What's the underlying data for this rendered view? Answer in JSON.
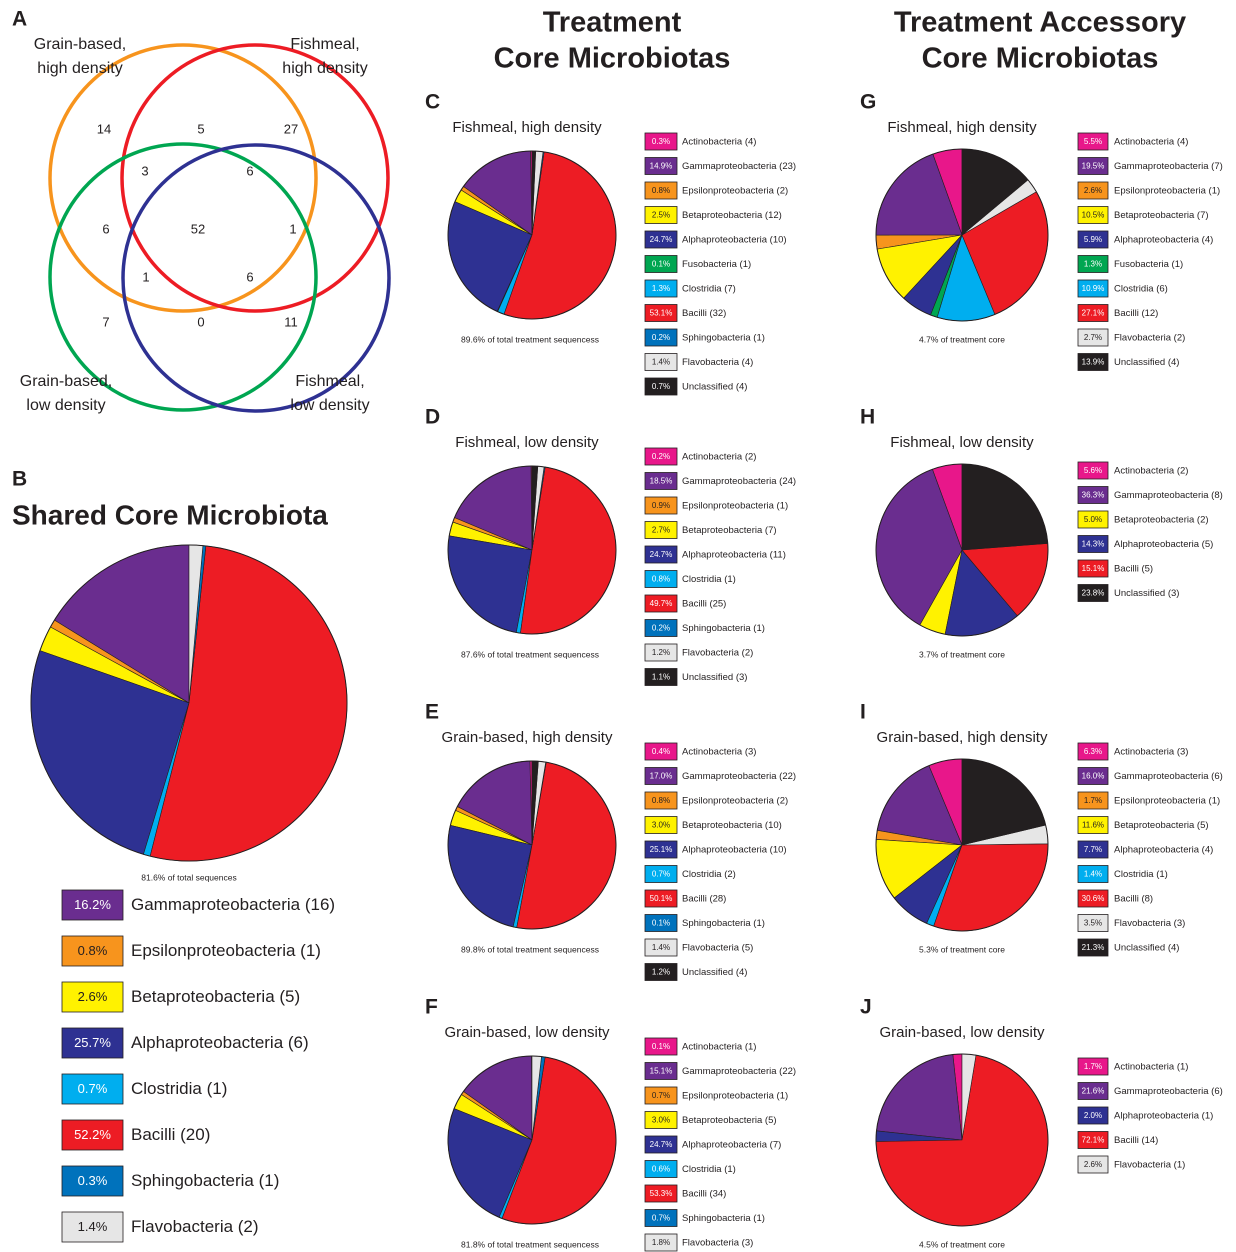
{
  "columns": [
    {
      "title_lines": [
        "Treatment",
        "Core Microbiotas"
      ]
    },
    {
      "title_lines": [
        "Treatment Accessory",
        "Core Microbiotas"
      ]
    }
  ],
  "venn": {
    "panel": "A",
    "sets": [
      {
        "label_lines": [
          "Grain-based,",
          "high density"
        ],
        "color": "#f7941d"
      },
      {
        "label_lines": [
          "Fishmeal,",
          "high density"
        ],
        "color": "#ed1c24"
      },
      {
        "label_lines": [
          "Grain-based,",
          "low density"
        ],
        "color": "#00a651"
      },
      {
        "label_lines": [
          "Fishmeal,",
          "low density"
        ],
        "color": "#2e3192"
      }
    ],
    "regions": [
      14,
      5,
      27,
      3,
      6,
      6,
      52,
      1,
      1,
      6,
      7,
      0,
      11
    ]
  },
  "chart_data": [
    {
      "type": "pie",
      "panel": "B",
      "title": "Shared Core Microbiota",
      "note": "81.6% of total sequences",
      "categories": [
        "Gammaproteobacteria (16)",
        "Epsilonproteobacteria (1)",
        "Betaproteobacteria (5)",
        "Alphaproteobacteria (6)",
        "Clostridia (1)",
        "Bacilli (20)",
        "Sphingobacteria (1)",
        "Flavobacteria (2)"
      ],
      "values": [
        16.2,
        0.8,
        2.6,
        25.7,
        0.7,
        52.2,
        0.3,
        1.4
      ],
      "value_labels": [
        "16.2%",
        "0.8%",
        "2.6%",
        "25.7%",
        "0.7%",
        "52.2%",
        "0.3%",
        "1.4%"
      ],
      "colors": [
        "#6a2d8f",
        "#f7941d",
        "#fff200",
        "#2e3192",
        "#00aeef",
        "#ed1c24",
        "#0072bc",
        "#e6e6e6"
      ]
    },
    {
      "type": "pie",
      "panel": "C",
      "title": "Fishmeal, high density",
      "note": "89.6% of total treatment sequencess",
      "categories": [
        "Actinobacteria (4)",
        "Gammaproteobacteria (23)",
        "Epsilonproteobacteria (2)",
        "Betaproteobacteria (12)",
        "Alphaproteobacteria (10)",
        "Fusobacteria (1)",
        "Clostridia (7)",
        "Bacilli (32)",
        "Sphingobacteria (1)",
        "Flavobacteria (4)",
        "Unclassified (4)"
      ],
      "values": [
        0.3,
        14.9,
        0.8,
        2.5,
        24.7,
        0.1,
        1.3,
        53.1,
        0.2,
        1.4,
        0.7
      ],
      "value_labels": [
        "0.3%",
        "14.9%",
        "0.8%",
        "2.5%",
        "24.7%",
        "0.1%",
        "1.3%",
        "53.1%",
        "0.2%",
        "1.4%",
        "0.7%"
      ],
      "colors": [
        "#e8178a",
        "#6a2d8f",
        "#f7941d",
        "#fff200",
        "#2e3192",
        "#00a651",
        "#00aeef",
        "#ed1c24",
        "#0072bc",
        "#e6e6e6",
        "#231f20"
      ]
    },
    {
      "type": "pie",
      "panel": "D",
      "title": "Fishmeal, low density",
      "note": "87.6% of total treatment sequencess",
      "categories": [
        "Actinobacteria (2)",
        "Gammaproteobacteria (24)",
        "Epsilonproteobacteria (1)",
        "Betaproteobacteria (7)",
        "Alphaproteobacteria (11)",
        "Clostridia (1)",
        "Bacilli (25)",
        "Sphingobacteria (1)",
        "Flavobacteria (2)",
        "Unclassified (3)"
      ],
      "values": [
        0.2,
        18.5,
        0.9,
        2.7,
        24.7,
        0.8,
        49.7,
        0.2,
        1.2,
        1.1
      ],
      "value_labels": [
        "0.2%",
        "18.5%",
        "0.9%",
        "2.7%",
        "24.7%",
        "0.8%",
        "49.7%",
        "0.2%",
        "1.2%",
        "1.1%"
      ],
      "colors": [
        "#e8178a",
        "#6a2d8f",
        "#f7941d",
        "#fff200",
        "#2e3192",
        "#00aeef",
        "#ed1c24",
        "#0072bc",
        "#e6e6e6",
        "#231f20"
      ]
    },
    {
      "type": "pie",
      "panel": "E",
      "title": "Grain-based, high density",
      "note": "89.8% of total treatment sequencess",
      "categories": [
        "Actinobacteria (3)",
        "Gammaproteobacteria (22)",
        "Epsilonproteobacteria (2)",
        "Betaproteobacteria (10)",
        "Alphaproteobacteria (10)",
        "Clostridia (2)",
        "Bacilli (28)",
        "Sphingobacteria (1)",
        "Flavobacteria (5)",
        "Unclassified (4)"
      ],
      "values": [
        0.4,
        17.0,
        0.8,
        3.0,
        25.1,
        0.7,
        50.1,
        0.1,
        1.4,
        1.2
      ],
      "value_labels": [
        "0.4%",
        "17.0%",
        "0.8%",
        "3.0%",
        "25.1%",
        "0.7%",
        "50.1%",
        "0.1%",
        "1.4%",
        "1.2%"
      ],
      "colors": [
        "#e8178a",
        "#6a2d8f",
        "#f7941d",
        "#fff200",
        "#2e3192",
        "#00aeef",
        "#ed1c24",
        "#0072bc",
        "#e6e6e6",
        "#231f20"
      ]
    },
    {
      "type": "pie",
      "panel": "F",
      "title": "Grain-based, low density",
      "note": "81.8% of total treatment sequencess",
      "categories": [
        "Actinobacteria (1)",
        "Gammaproteobacteria (22)",
        "Epsilonproteobacteria (1)",
        "Betaproteobacteria (5)",
        "Alphaproteobacteria (7)",
        "Clostridia (1)",
        "Bacilli (34)",
        "Sphingobacteria (1)",
        "Flavobacteria (3)"
      ],
      "values": [
        0.1,
        15.1,
        0.7,
        3.0,
        24.7,
        0.6,
        53.3,
        0.7,
        1.8
      ],
      "value_labels": [
        "0.1%",
        "15.1%",
        "0.7%",
        "3.0%",
        "24.7%",
        "0.6%",
        "53.3%",
        "0.7%",
        "1.8%"
      ],
      "colors": [
        "#e8178a",
        "#6a2d8f",
        "#f7941d",
        "#fff200",
        "#2e3192",
        "#00aeef",
        "#ed1c24",
        "#0072bc",
        "#e6e6e6"
      ]
    },
    {
      "type": "pie",
      "panel": "G",
      "title": "Fishmeal, high density",
      "note": "4.7% of treatment core",
      "categories": [
        "Actinobacteria (4)",
        "Gammaproteobacteria (7)",
        "Epsilonproteobacteria (1)",
        "Betaproteobacteria (7)",
        "Alphaproteobacteria (4)",
        "Fusobacteria (1)",
        "Clostridia (6)",
        "Bacilli (12)",
        "Flavobacteria (2)",
        "Unclassified (4)"
      ],
      "values": [
        5.5,
        19.5,
        2.6,
        10.5,
        5.9,
        1.3,
        10.9,
        27.1,
        2.7,
        13.9
      ],
      "value_labels": [
        "5.5%",
        "19.5%",
        "2.6%",
        "10.5%",
        "5.9%",
        "1.3%",
        "10.9%",
        "27.1%",
        "2.7%",
        "13.9%"
      ],
      "colors": [
        "#e8178a",
        "#6a2d8f",
        "#f7941d",
        "#fff200",
        "#2e3192",
        "#00a651",
        "#00aeef",
        "#ed1c24",
        "#e6e6e6",
        "#231f20"
      ]
    },
    {
      "type": "pie",
      "panel": "H",
      "title": "Fishmeal, low density",
      "note": "3.7% of treatment core",
      "categories": [
        "Actinobacteria (2)",
        "Gammaproteobacteria (8)",
        "Betaproteobacteria (2)",
        "Alphaproteobacteria (5)",
        "Bacilli (5)",
        "Unclassified (3)"
      ],
      "values": [
        5.6,
        36.3,
        5.0,
        14.3,
        15.1,
        23.8
      ],
      "value_labels": [
        "5.6%",
        "36.3%",
        "5.0%",
        "14.3%",
        "15.1%",
        "23.8%"
      ],
      "colors": [
        "#e8178a",
        "#6a2d8f",
        "#fff200",
        "#2e3192",
        "#ed1c24",
        "#231f20"
      ]
    },
    {
      "type": "pie",
      "panel": "I",
      "title": "Grain-based, high density",
      "note": "5.3% of treatment core",
      "categories": [
        "Actinobacteria (3)",
        "Gammaproteobacteria (6)",
        "Epsilonproteobacteria (1)",
        "Betaproteobacteria (5)",
        "Alphaproteobacteria (4)",
        "Clostridia (1)",
        "Bacilli (8)",
        "Flavobacteria (3)",
        "Unclassified (4)"
      ],
      "values": [
        6.3,
        16.0,
        1.7,
        11.6,
        7.7,
        1.4,
        30.6,
        3.5,
        21.3
      ],
      "value_labels": [
        "6.3%",
        "16.0%",
        "1.7%",
        "11.6%",
        "7.7%",
        "1.4%",
        "30.6%",
        "3.5%",
        "21.3%"
      ],
      "colors": [
        "#e8178a",
        "#6a2d8f",
        "#f7941d",
        "#fff200",
        "#2e3192",
        "#00aeef",
        "#ed1c24",
        "#e6e6e6",
        "#231f20"
      ]
    },
    {
      "type": "pie",
      "panel": "J",
      "title": "Grain-based, low density",
      "note": "4.5% of treatment core",
      "categories": [
        "Actinobacteria (1)",
        "Gammaproteobacteria (6)",
        "Alphaproteobacteria (1)",
        "Bacilli (14)",
        "Flavobacteria (1)"
      ],
      "values": [
        1.7,
        21.6,
        2.0,
        72.1,
        2.6
      ],
      "value_labels": [
        "1.7%",
        "21.6%",
        "2.0%",
        "72.1%",
        "2.6%"
      ],
      "colors": [
        "#e8178a",
        "#6a2d8f",
        "#2e3192",
        "#ed1c24",
        "#e6e6e6"
      ]
    }
  ]
}
